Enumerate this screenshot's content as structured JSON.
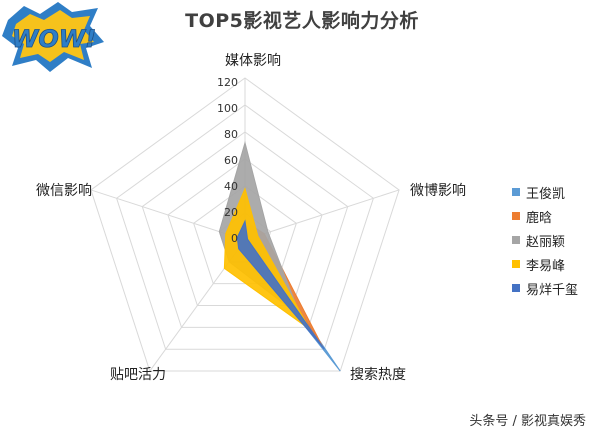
{
  "title": "TOP5影视艺人影响力分析",
  "logo_text": "WOW!",
  "watermark": "头条号 / 影视真娱秀",
  "chart_data": {
    "type": "radar",
    "axes": [
      "媒体影响",
      "微博影响",
      "搜索热度",
      "贴吧活力",
      "微信影响"
    ],
    "rlim": [
      0,
      120
    ],
    "ticks": [
      "0",
      "20",
      "40",
      "60",
      "80",
      "100",
      "120"
    ],
    "grid": true,
    "legend_position": "right",
    "series": [
      {
        "name": "王俊凯",
        "color": "#5b9bd5",
        "values": [
          12,
          4,
          120,
          5,
          5
        ]
      },
      {
        "name": "鹿晗",
        "color": "#ed7d31",
        "values": [
          14,
          15,
          98,
          5,
          6
        ]
      },
      {
        "name": "赵丽颖",
        "color": "#a5a5a5",
        "values": [
          72,
          18,
          70,
          20,
          20
        ]
      },
      {
        "name": "李易峰",
        "color": "#ffc000",
        "values": [
          38,
          10,
          82,
          26,
          15
        ]
      },
      {
        "name": "易烊千玺",
        "color": "#4472c4",
        "values": [
          14,
          2,
          100,
          8,
          6
        ]
      }
    ]
  }
}
